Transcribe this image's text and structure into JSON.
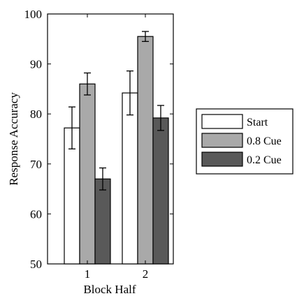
{
  "chart_data": {
    "type": "bar",
    "title": "",
    "xlabel": "Block Half",
    "ylabel": "Response Accuracy",
    "categories": [
      "1",
      "2"
    ],
    "ylim": [
      50,
      100
    ],
    "yticks": [
      50,
      60,
      70,
      80,
      90,
      100
    ],
    "grid": false,
    "legend_position": "right",
    "series": [
      {
        "name": "Start",
        "color": "#ffffff",
        "values": [
          77.2,
          84.2
        ],
        "errors": [
          4.2,
          4.4
        ]
      },
      {
        "name": "0.8 Cue",
        "color": "#a9a9a9",
        "values": [
          86.0,
          95.5
        ],
        "errors": [
          2.2,
          1.0
        ]
      },
      {
        "name": "0.2 Cue",
        "color": "#595959",
        "values": [
          67.0,
          79.2
        ],
        "errors": [
          2.2,
          2.5
        ]
      }
    ]
  }
}
